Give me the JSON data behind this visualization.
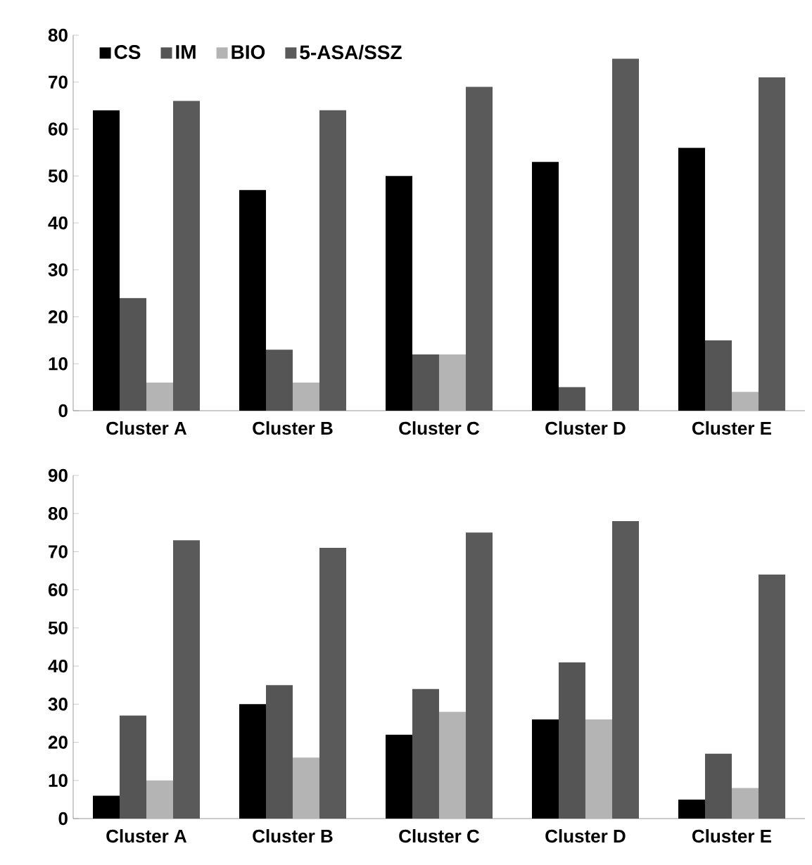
{
  "chart_data": [
    {
      "type": "bar",
      "categories": [
        "Cluster A",
        "Cluster B",
        "Cluster C",
        "Cluster D",
        "Cluster E"
      ],
      "ylim": [
        0,
        80
      ],
      "yticks": [
        0,
        10,
        20,
        30,
        40,
        50,
        60,
        70,
        80
      ],
      "legend": "top left",
      "grid": false,
      "series": [
        {
          "name": "CS",
          "color": "#000000",
          "values": [
            64,
            47,
            50,
            53,
            56
          ]
        },
        {
          "name": "IM",
          "color": "#555555",
          "values": [
            24,
            13,
            12,
            5,
            15
          ]
        },
        {
          "name": "BIO",
          "color": "#b4b4b4",
          "values": [
            6,
            6,
            12,
            0,
            4
          ]
        },
        {
          "name": "5-ASA/SSZ",
          "color": "#5a5a5a",
          "values": [
            66,
            64,
            69,
            75,
            71
          ]
        }
      ]
    },
    {
      "type": "bar",
      "categories": [
        "Cluster A",
        "Cluster B",
        "Cluster C",
        "Cluster D",
        "Cluster E"
      ],
      "ylim": [
        0,
        90
      ],
      "yticks": [
        0,
        10,
        20,
        30,
        40,
        50,
        60,
        70,
        80,
        90
      ],
      "grid": false,
      "series": [
        {
          "color": "#000000",
          "values": [
            6,
            30,
            22,
            26,
            5
          ]
        },
        {
          "color": "#555555",
          "values": [
            27,
            35,
            34,
            41,
            17
          ]
        },
        {
          "color": "#b4b4b4",
          "values": [
            10,
            16,
            28,
            26,
            8
          ]
        },
        {
          "color": "#5a5a5a",
          "values": [
            73,
            71,
            75,
            78,
            64
          ]
        }
      ]
    }
  ]
}
